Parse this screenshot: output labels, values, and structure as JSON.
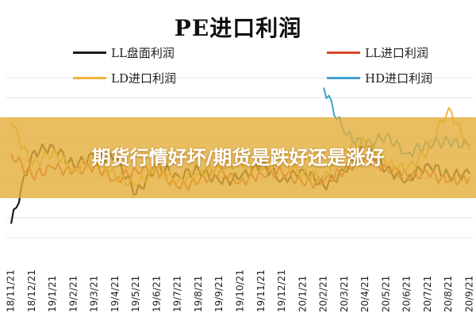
{
  "banner": {
    "headline": "期货行情好坏/期货是跌好还是涨好"
  },
  "chart_data": {
    "type": "line",
    "title": "PE进口利润",
    "grid": "horizontal",
    "legend_position": "top",
    "categories": [
      "18/11/21",
      "18/12/21",
      "19/1/21",
      "19/2/21",
      "19/3/21",
      "19/4/21",
      "19/5/21",
      "19/6/21",
      "19/7/21",
      "19/8/21",
      "19/9/21",
      "19/10/21",
      "19/11/21",
      "19/12/21",
      "20/1/21",
      "20/2/21",
      "20/3/21",
      "20/4/21",
      "20/5/21",
      "20/6/21",
      "20/7/21",
      "20/8/21",
      "20/9/21"
    ],
    "series": [
      {
        "name": "LL盘面利润",
        "color": "#1a1a1a",
        "values": [
          -330,
          20,
          60,
          -40,
          10,
          0,
          -180,
          -40,
          -90,
          -60,
          -120,
          -100,
          -30,
          -110,
          -60,
          -140,
          -70,
          60,
          -60,
          -110,
          -30,
          -90,
          -80
        ]
      },
      {
        "name": "LL进口利润",
        "color": "#d9452b",
        "values": [
          20,
          -90,
          -50,
          -70,
          -40,
          -110,
          -60,
          -60,
          -150,
          -120,
          -70,
          -120,
          -80,
          -70,
          -130,
          -120,
          -60,
          0,
          -50,
          -90,
          -80,
          -120,
          -100
        ]
      },
      {
        "name": "LD进口利润",
        "color": "#f0b43c",
        "values": [
          180,
          -40,
          30,
          -60,
          -10,
          -90,
          -140,
          -50,
          -120,
          -70,
          -50,
          -20,
          -60,
          -20,
          -80,
          -90,
          40,
          80,
          -30,
          -60,
          40,
          250,
          40
        ]
      },
      {
        "name": "HD进口利润",
        "color": "#3fa1cf",
        "values": [
          null,
          null,
          null,
          null,
          null,
          null,
          null,
          null,
          null,
          null,
          null,
          null,
          null,
          null,
          null,
          350,
          120,
          60,
          110,
          20,
          70,
          80,
          60
        ]
      }
    ]
  },
  "colors": {
    "banner": "#e4ae38",
    "grid": "#e4e4e4"
  }
}
